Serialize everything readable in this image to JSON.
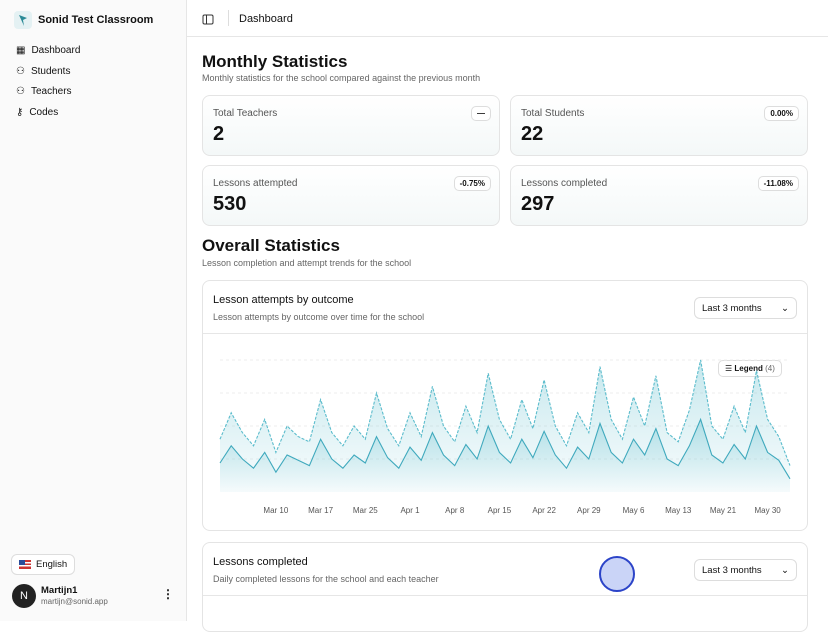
{
  "sidebar": {
    "brand": "Sonid Test Classroom",
    "nav": [
      "Dashboard",
      "Students",
      "Teachers",
      "Codes"
    ],
    "language": "English",
    "user": {
      "initial": "N",
      "name": "Martijn1",
      "email": "martijn@sonid.app"
    }
  },
  "header": {
    "title": "Dashboard"
  },
  "monthly": {
    "title": "Monthly Statistics",
    "subtitle": "Monthly statistics for the school compared against the previous month",
    "cards": [
      {
        "label": "Total Teachers",
        "value": 2,
        "change": "—"
      },
      {
        "label": "Total Students",
        "value": 22,
        "change": "0.00%"
      },
      {
        "label": "Lessons attempted",
        "value": 530,
        "change": "-0.75%"
      },
      {
        "label": "Lessons completed",
        "value": 297,
        "change": "-11.08%"
      }
    ]
  },
  "overall": {
    "title": "Overall Statistics",
    "subtitle": "Lesson completion and attempt trends for the school"
  },
  "attempts_card": {
    "title": "Lesson attempts by outcome",
    "subtitle": "Lesson attempts by outcome over time for the school",
    "range": "Last 3 months",
    "legend": "Legend",
    "legend_count": "(4)"
  },
  "chart_data": {
    "type": "area",
    "ylim": [
      0,
      100
    ],
    "categories": [
      null,
      null,
      null,
      null,
      null,
      "Mar 10",
      null,
      null,
      null,
      "Mar 17",
      null,
      null,
      null,
      "Mar 25",
      null,
      null,
      null,
      "Apr 1",
      null,
      null,
      null,
      "Apr 8",
      null,
      null,
      null,
      "Apr 15",
      null,
      null,
      null,
      "Apr 22",
      null,
      null,
      null,
      "Apr 29",
      null,
      null,
      null,
      "May 6",
      null,
      null,
      null,
      "May 13",
      null,
      null,
      null,
      "May 21",
      null,
      null,
      null,
      "May 30",
      null,
      null
    ],
    "series": [
      {
        "color": "#5bbccc",
        "values": [
          40,
          60,
          45,
          35,
          55,
          30,
          50,
          42,
          38,
          70,
          45,
          35,
          50,
          40,
          75,
          48,
          35,
          60,
          42,
          80,
          50,
          38,
          65,
          45,
          90,
          55,
          40,
          70,
          48,
          85,
          50,
          35,
          60,
          45,
          95,
          55,
          40,
          72,
          50,
          88,
          45,
          38,
          62,
          100,
          50,
          40,
          65,
          45,
          92,
          55,
          42,
          20
        ]
      },
      {
        "color": "#3fa9bd",
        "values": [
          22,
          35,
          25,
          18,
          30,
          15,
          28,
          24,
          20,
          40,
          25,
          18,
          28,
          22,
          42,
          26,
          18,
          34,
          24,
          45,
          28,
          20,
          36,
          25,
          50,
          30,
          22,
          40,
          26,
          46,
          28,
          18,
          34,
          25,
          52,
          30,
          22,
          40,
          28,
          48,
          25,
          20,
          35,
          55,
          28,
          22,
          36,
          25,
          50,
          30,
          24,
          10
        ]
      }
    ]
  },
  "completed_card": {
    "title": "Lessons completed",
    "subtitle": "Daily completed lessons for the school and each teacher",
    "range": "Last 3 months"
  }
}
